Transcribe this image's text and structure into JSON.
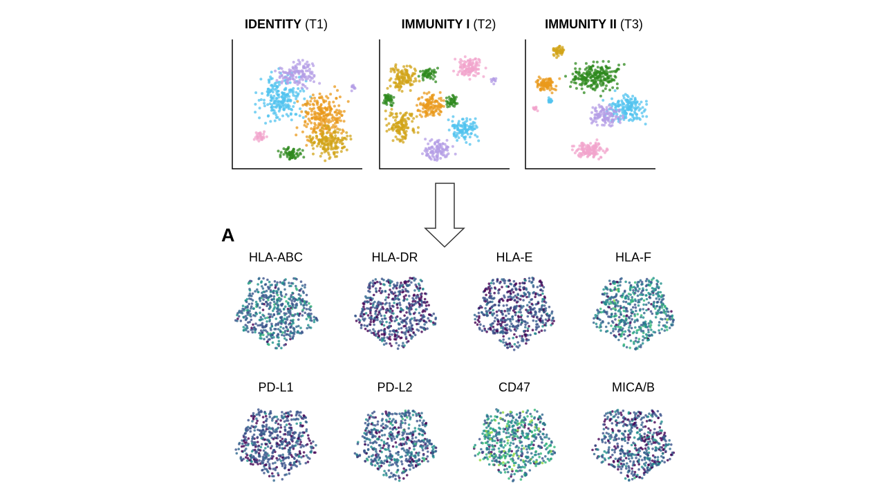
{
  "panels": [
    {
      "title_bold": "IDENTITY",
      "title_rest": "(T1)"
    },
    {
      "title_bold": "IMMUNITY I",
      "title_rest": "(T2)"
    },
    {
      "title_bold": "IMMUNITY II",
      "title_rest": "(T3)"
    }
  ],
  "section_label": "A",
  "markers": [
    "HLA-ABC",
    "HLA-DR",
    "HLA-E",
    "HLA-F",
    "PD-L1",
    "PD-L2",
    "CD47",
    "MICA/B"
  ]
}
